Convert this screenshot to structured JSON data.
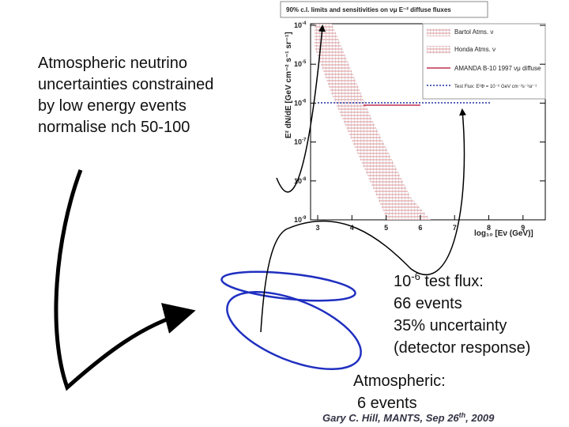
{
  "slide": {
    "left_text": [
      "Atmospheric neutrino",
      "uncertainties constrained",
      "by low energy events",
      "normalise nch 50-100"
    ],
    "flux": {
      "base": "10",
      "exp": "-6",
      "rest": " test flux:"
    },
    "right_text": [
      "66 events",
      "35% uncertainty",
      "(detector response)"
    ],
    "atmos": [
      "Atmospheric:",
      "6 events"
    ],
    "footer": {
      "text": "Gary C. Hill, MANTS, Sep 26",
      "sup": "th",
      "rest": ", 2009"
    }
  },
  "plot": {
    "title": "90% c.l. limits and sensitivities on νμ E⁻² diffuse fluxes",
    "ylabel": "E² dN/dE [GeV cm⁻² s⁻¹ sr⁻¹]",
    "xlabel": "log₁₀ [Eν (GeV)]",
    "xticks": [
      3,
      4,
      5,
      6,
      7,
      8,
      9
    ],
    "ytick_base": "10",
    "yticks": [
      -4,
      -5,
      -6,
      -7,
      -8,
      -9
    ],
    "legend": [
      "Bartol Atms. ν",
      "Honda Atms. ν",
      "AMANDA B-10 1997 νμ diffuse",
      "Test Flux: E²Φ = 10⁻⁶ GeV cm⁻²s⁻¹sr⁻¹"
    ]
  }
}
